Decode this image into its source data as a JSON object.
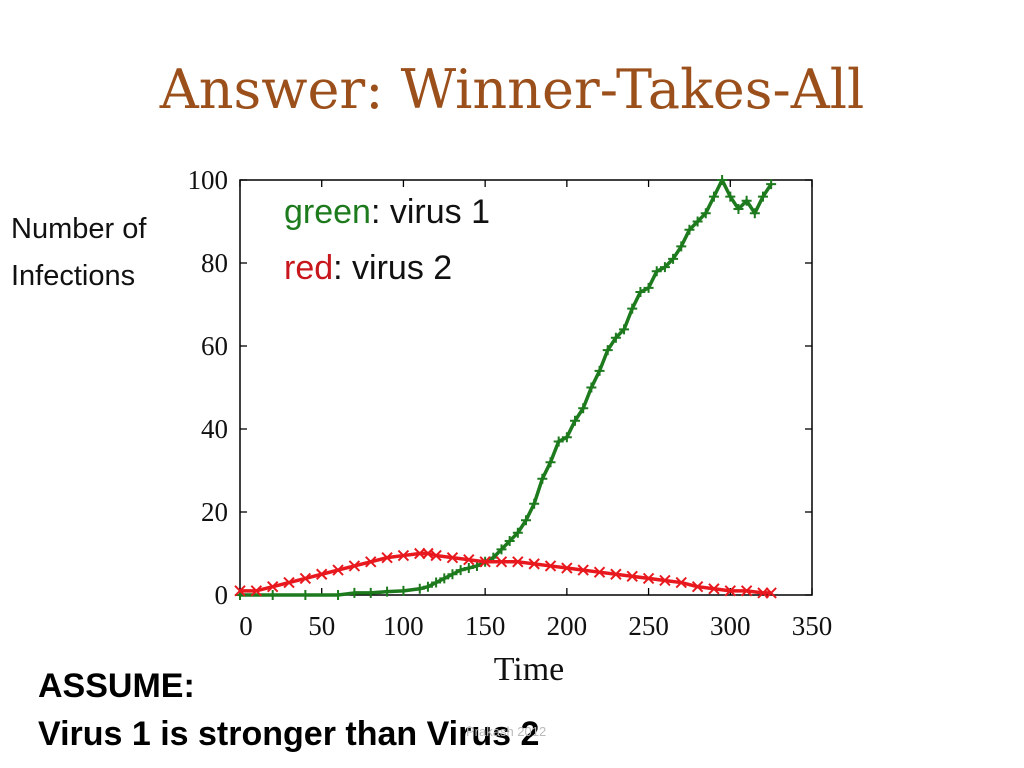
{
  "slide": {
    "title": "Answer: Winner-Takes-All",
    "ylabel_line1": "Number of",
    "ylabel_line2": "Infections",
    "legend": [
      {
        "key": "green",
        "text": ": virus 1",
        "color": "#1d7a1d"
      },
      {
        "key": "red",
        "text": ": virus 2",
        "color": "#c8161d"
      }
    ],
    "assume_heading": "ASSUME:",
    "assume_text": "Virus 1 is stronger than Virus 2",
    "footer": "Prakash 2012"
  },
  "chart_data": {
    "type": "line",
    "title": "",
    "xlabel": "Time",
    "ylabel": "Number of Infections",
    "xlim": [
      0,
      350
    ],
    "ylim": [
      0,
      100
    ],
    "xticks": [
      0,
      50,
      100,
      150,
      200,
      250,
      300,
      350
    ],
    "yticks": [
      0,
      20,
      40,
      60,
      80,
      100
    ],
    "grid": false,
    "legend_position": "top-left",
    "series": [
      {
        "name": "virus 1",
        "color": "#1d7a1d",
        "marker": "plus",
        "x": [
          0,
          20,
          40,
          60,
          70,
          80,
          90,
          100,
          110,
          115,
          120,
          125,
          130,
          135,
          140,
          145,
          150,
          155,
          160,
          165,
          170,
          175,
          180,
          185,
          190,
          195,
          200,
          205,
          210,
          215,
          220,
          225,
          230,
          235,
          240,
          245,
          250,
          255,
          260,
          265,
          270,
          275,
          280,
          285,
          290,
          295,
          300,
          305,
          310,
          315,
          320,
          325
        ],
        "y": [
          0,
          0,
          0,
          0,
          0.5,
          0.5,
          0.8,
          1,
          1.5,
          2,
          3,
          4,
          5,
          6,
          6.5,
          7,
          8,
          9,
          11,
          13,
          15,
          18,
          22,
          28,
          32,
          37,
          38,
          42,
          45,
          50,
          54,
          59,
          62,
          64,
          69,
          73,
          74,
          78,
          79,
          81,
          84,
          88,
          90,
          92,
          96,
          100,
          96,
          93,
          95,
          92,
          96,
          99
        ]
      },
      {
        "name": "virus 2",
        "color": "#e8191e",
        "marker": "x",
        "x": [
          0,
          10,
          20,
          30,
          40,
          50,
          60,
          70,
          80,
          90,
          100,
          110,
          115,
          120,
          130,
          140,
          150,
          160,
          170,
          180,
          190,
          200,
          210,
          220,
          230,
          240,
          250,
          260,
          270,
          280,
          290,
          300,
          310,
          320,
          325
        ],
        "y": [
          1,
          1,
          2,
          3,
          4,
          5,
          6,
          7,
          8,
          9,
          9.5,
          10,
          10,
          9.5,
          9,
          8.5,
          8,
          8,
          8,
          7.5,
          7,
          6.5,
          6,
          5.5,
          5,
          4.5,
          4,
          3.5,
          3,
          2,
          1.5,
          1,
          1,
          0.5,
          0.5
        ]
      }
    ]
  }
}
